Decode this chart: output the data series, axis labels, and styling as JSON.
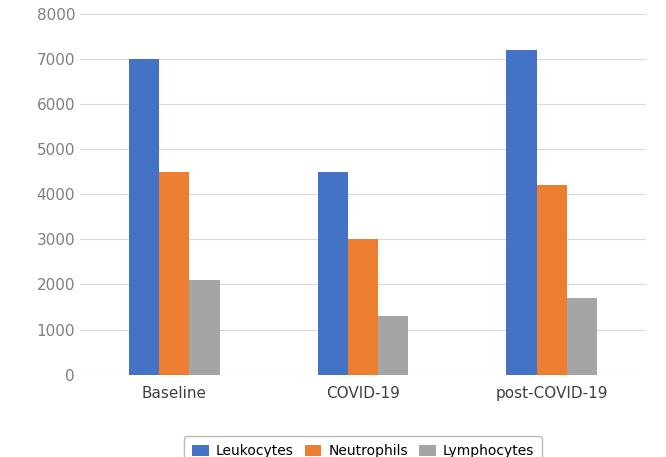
{
  "categories": [
    "Baseline",
    "COVID-19",
    "post-COVID-19"
  ],
  "series": {
    "Leukocytes": [
      7000,
      4500,
      7200
    ],
    "Neutrophils": [
      4500,
      3000,
      4200
    ],
    "Lymphocytes": [
      2100,
      1300,
      1700
    ]
  },
  "colors": {
    "Leukocytes": "#4472C4",
    "Neutrophils": "#ED7D31",
    "Lymphocytes": "#A5A5A5"
  },
  "ylim": [
    0,
    8000
  ],
  "yticks": [
    0,
    1000,
    2000,
    3000,
    4000,
    5000,
    6000,
    7000,
    8000
  ],
  "bar_width": 0.16,
  "background_color": "#ffffff",
  "grid_color": "#d9d9d9",
  "legend_fontsize": 10,
  "tick_fontsize": 11,
  "ytick_color": "#808080",
  "xtick_color": "#404040"
}
